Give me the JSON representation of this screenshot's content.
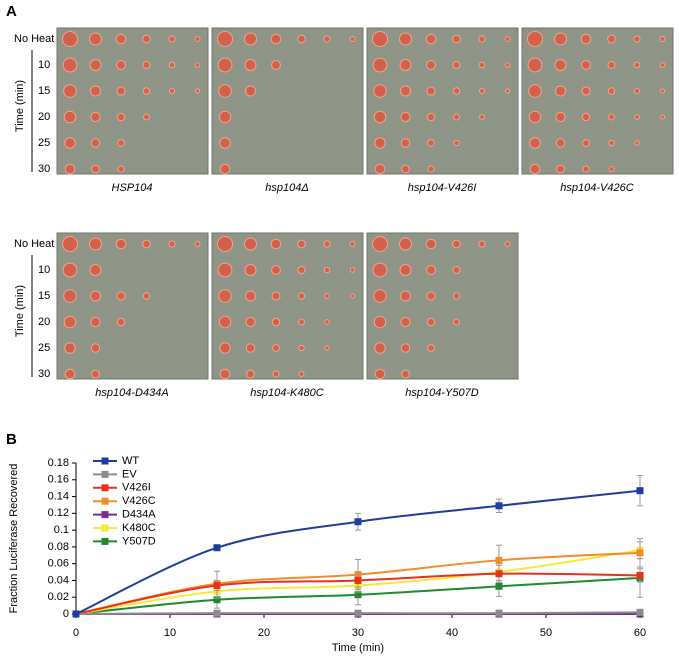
{
  "panel_a": {
    "label": "A",
    "rows": [
      {
        "no_heat": "No Heat",
        "axis_label": "Time (min)",
        "times": [
          "10",
          "15",
          "20",
          "25",
          "30"
        ],
        "plates": [
          "HSP104",
          "hsp104Δ",
          "hsp104-V426I",
          "hsp104-V426C"
        ]
      },
      {
        "no_heat": "No Heat",
        "axis_label": "Time (min)",
        "times": [
          "10",
          "15",
          "20",
          "25",
          "30"
        ],
        "plates": [
          "hsp104-D434A",
          "hsp104-K480C",
          "hsp104-Y507D"
        ]
      }
    ]
  },
  "panel_b": {
    "label": "B"
  },
  "chart_data": {
    "type": "line",
    "xlabel": "Time (min)",
    "ylabel": "Fraction Luciferase Recovered",
    "x": [
      0,
      15,
      30,
      45,
      60
    ],
    "xlim": [
      0,
      60
    ],
    "xticks": [
      0,
      10,
      20,
      30,
      40,
      50,
      60
    ],
    "ylim": [
      0,
      0.18
    ],
    "yticks": [
      0,
      0.02,
      0.04,
      0.06,
      0.08,
      0.1,
      0.12,
      0.14,
      0.16,
      0.18
    ],
    "legend": "upper-left",
    "series": [
      {
        "name": "WT",
        "color": "#1f3d9e",
        "values": [
          0,
          0.079,
          0.11,
          0.129,
          0.147
        ],
        "errors": [
          0,
          0.002,
          0.01,
          0.008,
          0.018
        ]
      },
      {
        "name": "EV",
        "color": "#8c8c8c",
        "values": [
          0,
          0.001,
          0.001,
          0.001,
          0.002
        ],
        "errors": [
          0,
          0.003,
          0.003,
          0.002,
          0.003
        ]
      },
      {
        "name": "V426I",
        "color": "#e8301c",
        "values": [
          0,
          0.034,
          0.04,
          0.048,
          0.046
        ],
        "errors": [
          0,
          0.006,
          0.008,
          0.01,
          0.008
        ]
      },
      {
        "name": "V426C",
        "color": "#f28c28",
        "values": [
          0,
          0.036,
          0.047,
          0.064,
          0.073
        ],
        "errors": [
          0,
          0.015,
          0.018,
          0.018,
          0.017
        ]
      },
      {
        "name": "D434A",
        "color": "#7b2d8e",
        "values": [
          0,
          0,
          0,
          0,
          0
        ],
        "errors": [
          0,
          0.002,
          0.002,
          0.002,
          0.002
        ]
      },
      {
        "name": "K480C",
        "color": "#f5e93a",
        "values": [
          0,
          0.027,
          0.034,
          0.05,
          0.076
        ],
        "errors": [
          0,
          0.008,
          0.008,
          0.01,
          0.01
        ]
      },
      {
        "name": "Y507D",
        "color": "#1f8a2e",
        "values": [
          0,
          0.017,
          0.023,
          0.033,
          0.043
        ],
        "errors": [
          0,
          0.01,
          0.012,
          0.012,
          0.023
        ]
      }
    ]
  }
}
